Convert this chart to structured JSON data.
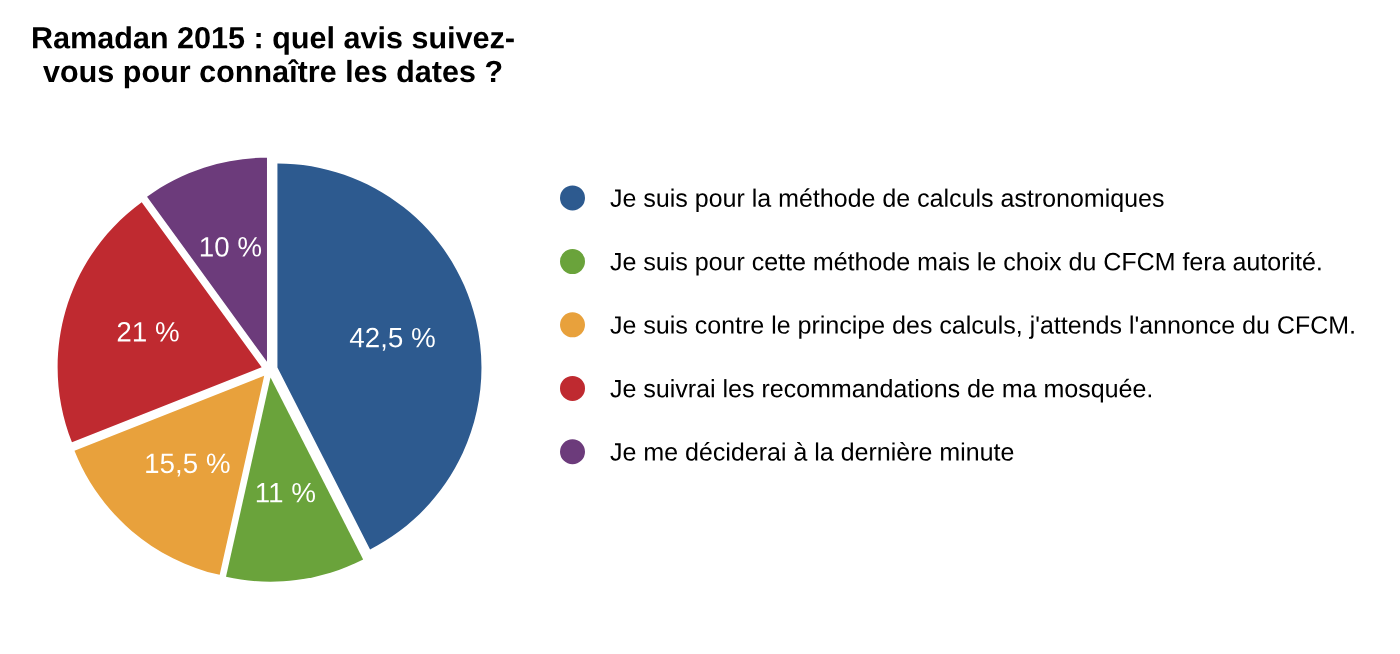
{
  "chart_data": {
    "type": "pie",
    "title": "Ramadan 2015 : quel avis suivez-\nvous pour connaître les dates ?",
    "categories": [
      "Je suis pour la méthode de calculs astronomiques",
      "Je suis pour cette méthode mais le choix du CFCM fera autorité.",
      "Je suis contre le principe des calculs, j'attends l'annonce du CFCM.",
      "Je suivrai les recommandations de ma mosquée.",
      "Je me déciderai à la dernière minute"
    ],
    "values": [
      42.5,
      11,
      15.5,
      21,
      10
    ],
    "value_labels": [
      "42,5 %",
      "11 %",
      "15,5 %",
      "21 %",
      "10 %"
    ],
    "colors": [
      "#2d5a8f",
      "#6aa33b",
      "#e8a13c",
      "#bf2a30",
      "#6c3b7b"
    ],
    "legend": "right"
  }
}
